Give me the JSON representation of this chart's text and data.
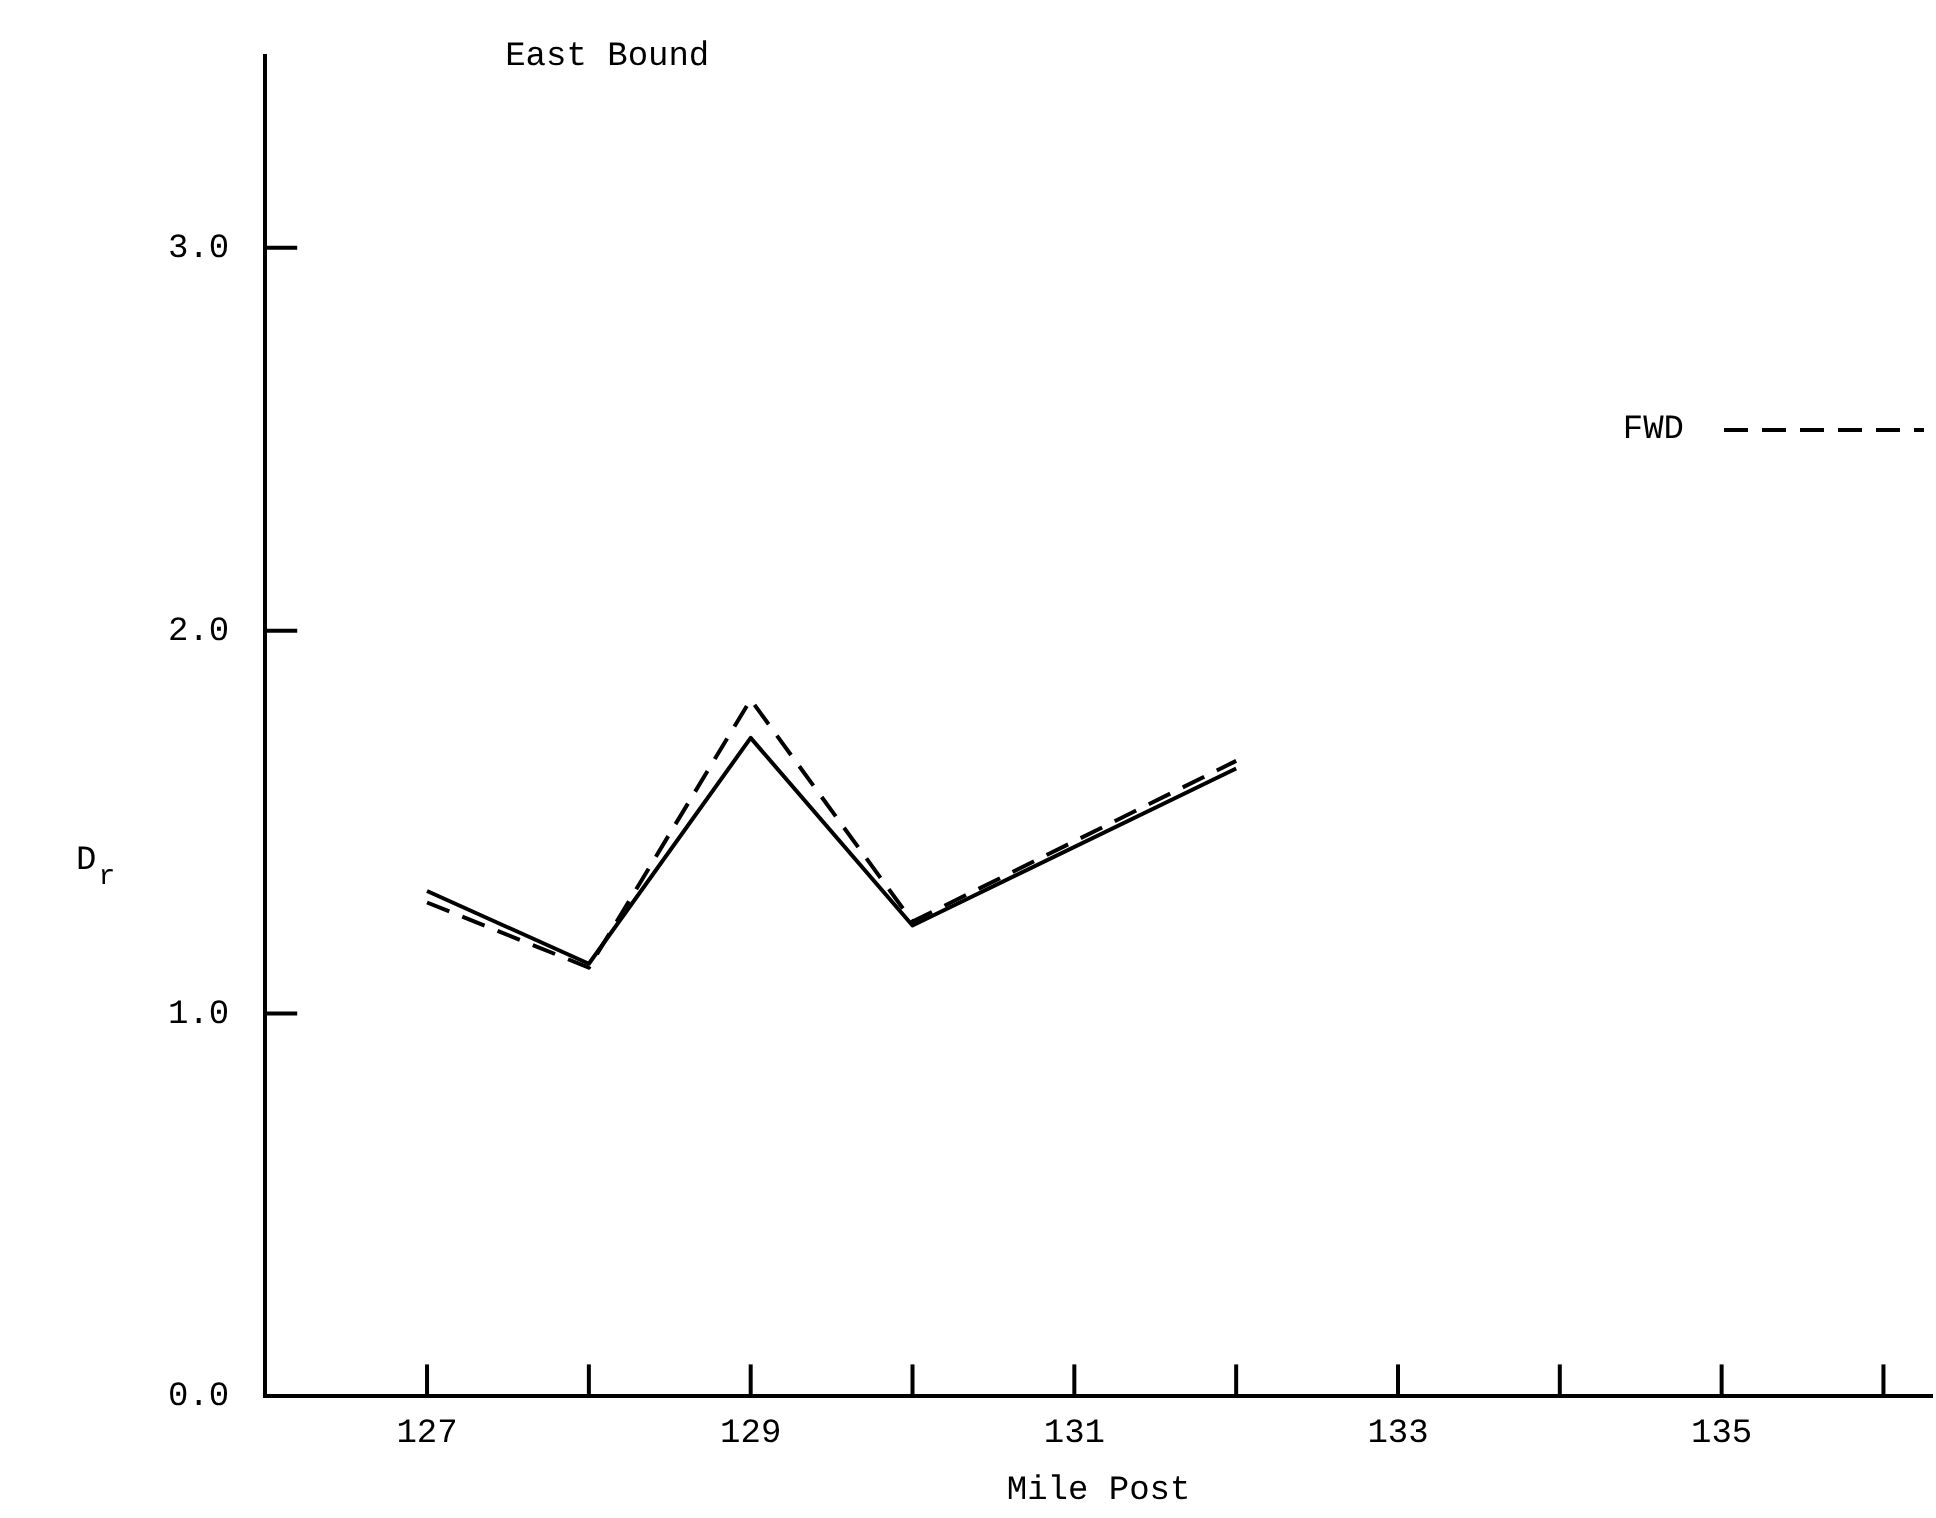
{
  "chart_data": {
    "type": "line",
    "title": "East Bound",
    "xlabel": "Mile Post",
    "ylabel": "D$_{r}$",
    "x": [
      127,
      128,
      129,
      130,
      132
    ],
    "series": [
      {
        "color": "#000000",
        "line_style": "solid",
        "values": [
          1.32,
          1.13,
          1.72,
          1.23,
          1.64
        ]
      },
      {
        "name": "FWD",
        "color": "#000000",
        "line_style": "dashed",
        "values": [
          1.29,
          1.12,
          1.82,
          1.24,
          1.66
        ]
      }
    ],
    "xlim": [
      126,
      136.3
    ],
    "ylim": [
      0,
      3.5
    ],
    "xticks": [
      127,
      {
        "value": 128,
        "label": null
      },
      129,
      {
        "value": 130,
        "label": null
      },
      131,
      {
        "value": 132,
        "label": null
      },
      133,
      {
        "value": 134,
        "label": null
      },
      135,
      {
        "value": 136,
        "label": null
      }
    ],
    "yticks": [
      {
        "value": 0,
        "label": "0.0"
      },
      {
        "value": 1,
        "label": "1.0"
      },
      {
        "value": 2,
        "label": "2.0"
      },
      {
        "value": 3,
        "label": "3.0"
      }
    ],
    "grid": false,
    "marker": "none",
    "legend": "top right"
  }
}
